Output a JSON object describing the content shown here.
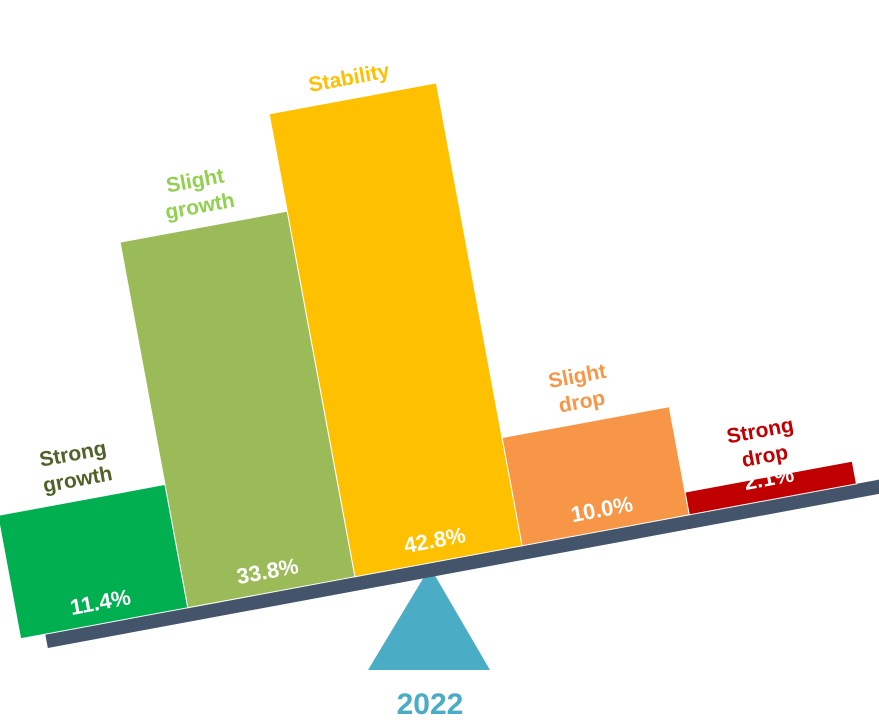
{
  "chart_data": {
    "type": "bar",
    "title": "2022",
    "categories": [
      "Strong growth",
      "Slight growth",
      "Stability",
      "Slight drop",
      "Strong drop"
    ],
    "values": [
      11.4,
      33.8,
      42.8,
      10.0,
      2.1
    ],
    "value_labels": [
      "11.4%",
      "33.8%",
      "42.8%",
      "10.0%",
      "2.1%"
    ],
    "colors": [
      "#00b050",
      "#9bbb59",
      "#ffc000",
      "#f79646",
      "#c00000"
    ],
    "label_colors": [
      "#4f6228",
      "#92d050",
      "#ffc000",
      "#f79646",
      "#c00000"
    ]
  }
}
